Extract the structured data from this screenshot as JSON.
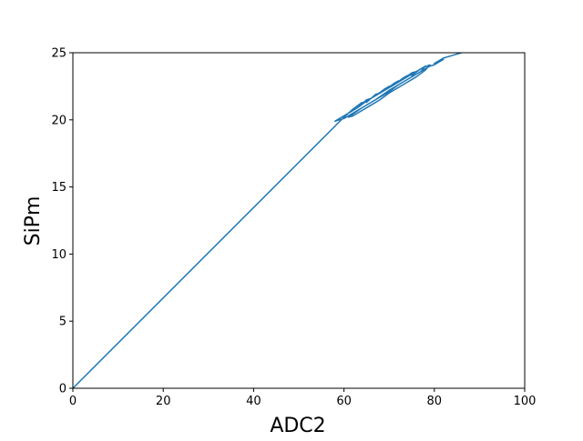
{
  "chart_data": {
    "type": "line",
    "xlabel": "ADC2",
    "ylabel": "SiPm",
    "xlim": [
      0,
      100
    ],
    "ylim": [
      0,
      25
    ],
    "x_ticks": [
      0,
      20,
      40,
      60,
      80,
      100
    ],
    "y_ticks": [
      0,
      5,
      10,
      15,
      20,
      25
    ],
    "grid": false,
    "legend": "none",
    "series": [
      {
        "color": "#1f77b4",
        "x": [
          0,
          60,
          62,
          64,
          63,
          65,
          66,
          65,
          67,
          68,
          67,
          69,
          70,
          69,
          71,
          72,
          71,
          73,
          74,
          73,
          75,
          76,
          75,
          77,
          78,
          77,
          76,
          74,
          72,
          70,
          68,
          66,
          64,
          62,
          60,
          58,
          61,
          63,
          65,
          67,
          69,
          71,
          73,
          75,
          77,
          79,
          78,
          76,
          74,
          72,
          70,
          68,
          66,
          64,
          62,
          61,
          64,
          67,
          70,
          73,
          76,
          79,
          80,
          82,
          80,
          82,
          84,
          86,
          88
        ],
        "y": [
          0,
          20.2,
          20.8,
          21.3,
          20.9,
          21.5,
          21.6,
          21.3,
          21.9,
          22.0,
          21.8,
          22.3,
          22.5,
          22.2,
          22.7,
          22.9,
          22.6,
          23.1,
          23.3,
          23.0,
          23.5,
          23.6,
          23.3,
          23.8,
          24.0,
          23.6,
          23.4,
          23.0,
          22.6,
          22.1,
          21.7,
          21.3,
          20.9,
          20.5,
          20.1,
          19.9,
          20.5,
          20.9,
          21.4,
          21.8,
          22.2,
          22.6,
          23.0,
          23.4,
          23.8,
          24.1,
          23.7,
          23.2,
          22.8,
          22.4,
          22.0,
          21.5,
          21.1,
          20.7,
          20.3,
          20.2,
          20.9,
          21.5,
          22.2,
          22.8,
          23.4,
          24.0,
          24.1,
          24.5,
          24.2,
          24.6,
          24.8,
          25.0,
          25.3
        ]
      }
    ]
  }
}
